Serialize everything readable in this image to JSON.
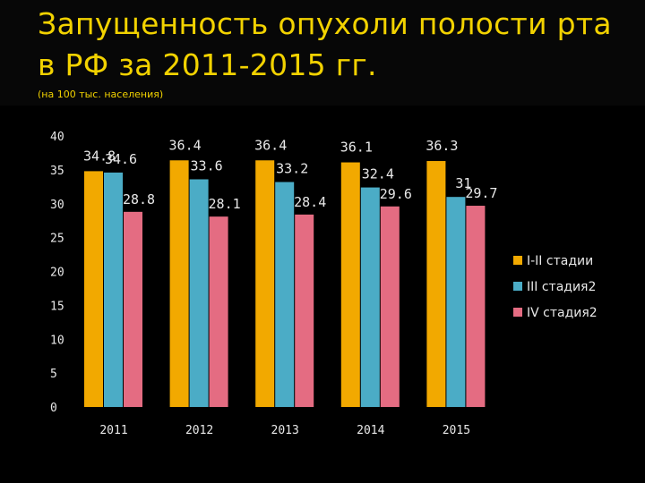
{
  "header": {
    "title": "Запущенность опухоли полости рта в РФ за 2011-2015 гг.",
    "subtitle": "(на 100 тыс. населения)"
  },
  "colors": {
    "series1": "#f2a900",
    "series2": "#4bacc6",
    "series3": "#e46c82",
    "text": "#e8e8e8",
    "title": "#f2d200"
  },
  "chart_data": {
    "type": "bar",
    "categories": [
      "2011",
      "2012",
      "2013",
      "2014",
      "2015"
    ],
    "series": [
      {
        "name": "I-II стадии",
        "values": [
          34.8,
          36.4,
          36.4,
          36.1,
          36.3
        ],
        "labels": [
          "34.8",
          "36.4",
          "36.4",
          "36.1",
          "36.3"
        ]
      },
      {
        "name": "III стадия2",
        "values": [
          34.6,
          33.6,
          33.2,
          32.4,
          31
        ],
        "labels": [
          "34.6",
          "33.6",
          "33.2",
          "32.4",
          "31"
        ]
      },
      {
        "name": "IV  стадия2",
        "values": [
          28.8,
          28.1,
          28.4,
          29.6,
          29.7
        ],
        "labels": [
          "28.8",
          "28.1",
          "28.4",
          "29.6",
          "29.7"
        ]
      }
    ],
    "yticks": [
      0,
      5,
      10,
      15,
      20,
      25,
      30,
      35,
      40
    ],
    "ylim": [
      0,
      40
    ],
    "legend_position": "right",
    "grid": false
  }
}
